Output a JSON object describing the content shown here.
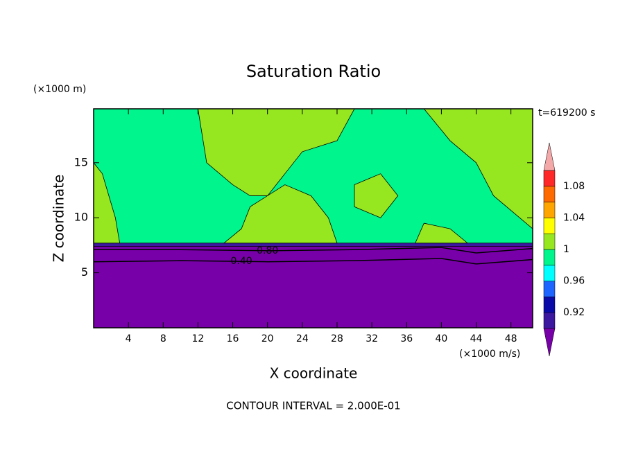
{
  "chart_data": {
    "type": "contour",
    "title": "Saturation Ratio",
    "x_label": "X coordinate",
    "y_label": "Z coordinate",
    "x_unit": "(×1000 m/s)",
    "y_unit": "(×1000 m)",
    "time_label": "t=619200 s",
    "footer": "CONTOUR INTERVAL = 2.000E-01",
    "xlim": [
      0,
      50.5
    ],
    "ylim": [
      0,
      19.9
    ],
    "xticks": [
      4,
      8,
      12,
      16,
      20,
      24,
      28,
      32,
      36,
      40,
      44,
      48
    ],
    "yticks": [
      5,
      10,
      15
    ],
    "colorbar": {
      "levels": [
        0.9,
        0.92,
        0.94,
        0.96,
        0.98,
        1,
        1.02,
        1.04,
        1.06,
        1.08,
        1.1
      ],
      "colors": [
        "#3c18a0",
        "#0a0aa8",
        "#1e64ff",
        "#00ffff",
        "#00f58c",
        "#96e620",
        "#ffff00",
        "#ffa500",
        "#ff6a00",
        "#ff2828"
      ],
      "under_color": "#7800a8",
      "over_color": "#f4a8a8",
      "ticks": [
        0.92,
        0.96,
        1,
        1.04,
        1.08
      ]
    },
    "regions": [
      {
        "level": 0.98,
        "x": [
          0,
          50.5,
          50.5,
          0
        ],
        "z": [
          7.6,
          7.6,
          19.9,
          19.9
        ]
      },
      {
        "level": 0.2,
        "x": [
          0,
          50.5,
          50.5,
          0
        ],
        "z": [
          0,
          0,
          7.5,
          7.5
        ]
      },
      {
        "level": 0.9,
        "x": [
          0,
          50.5,
          50.5,
          0
        ],
        "z": [
          7.4,
          7.4,
          7.7,
          7.7
        ]
      },
      {
        "level": 1,
        "x": [
          0,
          3,
          2.5,
          1,
          0
        ],
        "z": [
          7.7,
          7.7,
          10,
          14,
          15
        ]
      },
      {
        "level": 1,
        "x": [
          12,
          13,
          16,
          18,
          20,
          22,
          24,
          28,
          30
        ],
        "z": [
          19.9,
          15,
          13,
          12,
          12,
          14,
          16,
          17,
          19.9
        ]
      },
      {
        "level": 1,
        "x": [
          15,
          28,
          27,
          25,
          22,
          20,
          18,
          17
        ],
        "z": [
          7.7,
          7.7,
          10,
          12,
          13,
          12,
          11,
          9
        ]
      },
      {
        "level": 1,
        "x": [
          37,
          43,
          41,
          38
        ],
        "z": [
          7.7,
          7.7,
          9,
          9.5
        ]
      },
      {
        "level": 1,
        "x": [
          38,
          41,
          44,
          46,
          49,
          50.5,
          50.5
        ],
        "z": [
          19.9,
          17,
          15,
          12,
          10,
          9,
          19.9
        ]
      },
      {
        "level": 1,
        "x": [
          30,
          33,
          35,
          33,
          30
        ],
        "z": [
          11,
          10,
          12,
          14,
          13
        ]
      }
    ],
    "contours": [
      {
        "level": {
          "value": 0.8,
          "label": "0.80"
        },
        "label_x": 20,
        "x": [
          0,
          10,
          20,
          30,
          40,
          44,
          50.5
        ],
        "z": [
          7.1,
          7.1,
          7.0,
          7.1,
          7.3,
          6.8,
          7.2
        ]
      },
      {
        "level": {
          "value": 0.4,
          "label": "0.40"
        },
        "label_x": 17,
        "x": [
          0,
          10,
          20,
          30,
          40,
          44,
          50.5
        ],
        "z": [
          6.0,
          6.1,
          6.0,
          6.1,
          6.3,
          5.8,
          6.2
        ]
      }
    ]
  }
}
